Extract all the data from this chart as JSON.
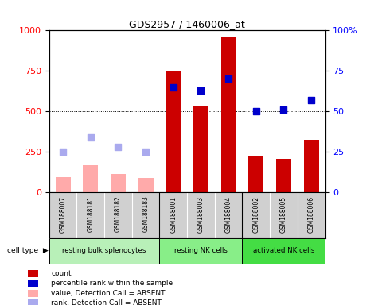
{
  "title": "GDS2957 / 1460006_at",
  "samples": [
    "GSM188007",
    "GSM188181",
    "GSM188182",
    "GSM188183",
    "GSM188001",
    "GSM188003",
    "GSM188004",
    "GSM188002",
    "GSM188005",
    "GSM188006"
  ],
  "cell_types": [
    {
      "label": "resting bulk splenocytes",
      "start": 0,
      "end": 4,
      "color": "#b8f0b8"
    },
    {
      "label": "resting NK cells",
      "start": 4,
      "end": 7,
      "color": "#88ee88"
    },
    {
      "label": "activated NK cells",
      "start": 7,
      "end": 10,
      "color": "#44dd44"
    }
  ],
  "bar_values_present": [
    null,
    null,
    null,
    null,
    750,
    530,
    960,
    220,
    205,
    325
  ],
  "bar_values_absent": [
    95,
    165,
    115,
    90,
    null,
    null,
    null,
    null,
    null,
    null
  ],
  "rank_present": [
    null,
    null,
    null,
    null,
    65,
    63,
    70,
    50,
    51,
    57
  ],
  "rank_absent": [
    25,
    34,
    28,
    25,
    null,
    null,
    null,
    null,
    null,
    null
  ],
  "left_ylim": [
    0,
    1000
  ],
  "right_ylim": [
    0,
    100
  ],
  "left_yticks": [
    0,
    250,
    500,
    750,
    1000
  ],
  "right_yticks": [
    0,
    25,
    50,
    75,
    100
  ],
  "color_bar_present": "#cc0000",
  "color_bar_absent": "#ffaaaa",
  "color_rank_present": "#0000cc",
  "color_rank_absent": "#aaaaee",
  "bar_width": 0.55,
  "figsize": [
    4.75,
    3.84
  ],
  "dpi": 100
}
